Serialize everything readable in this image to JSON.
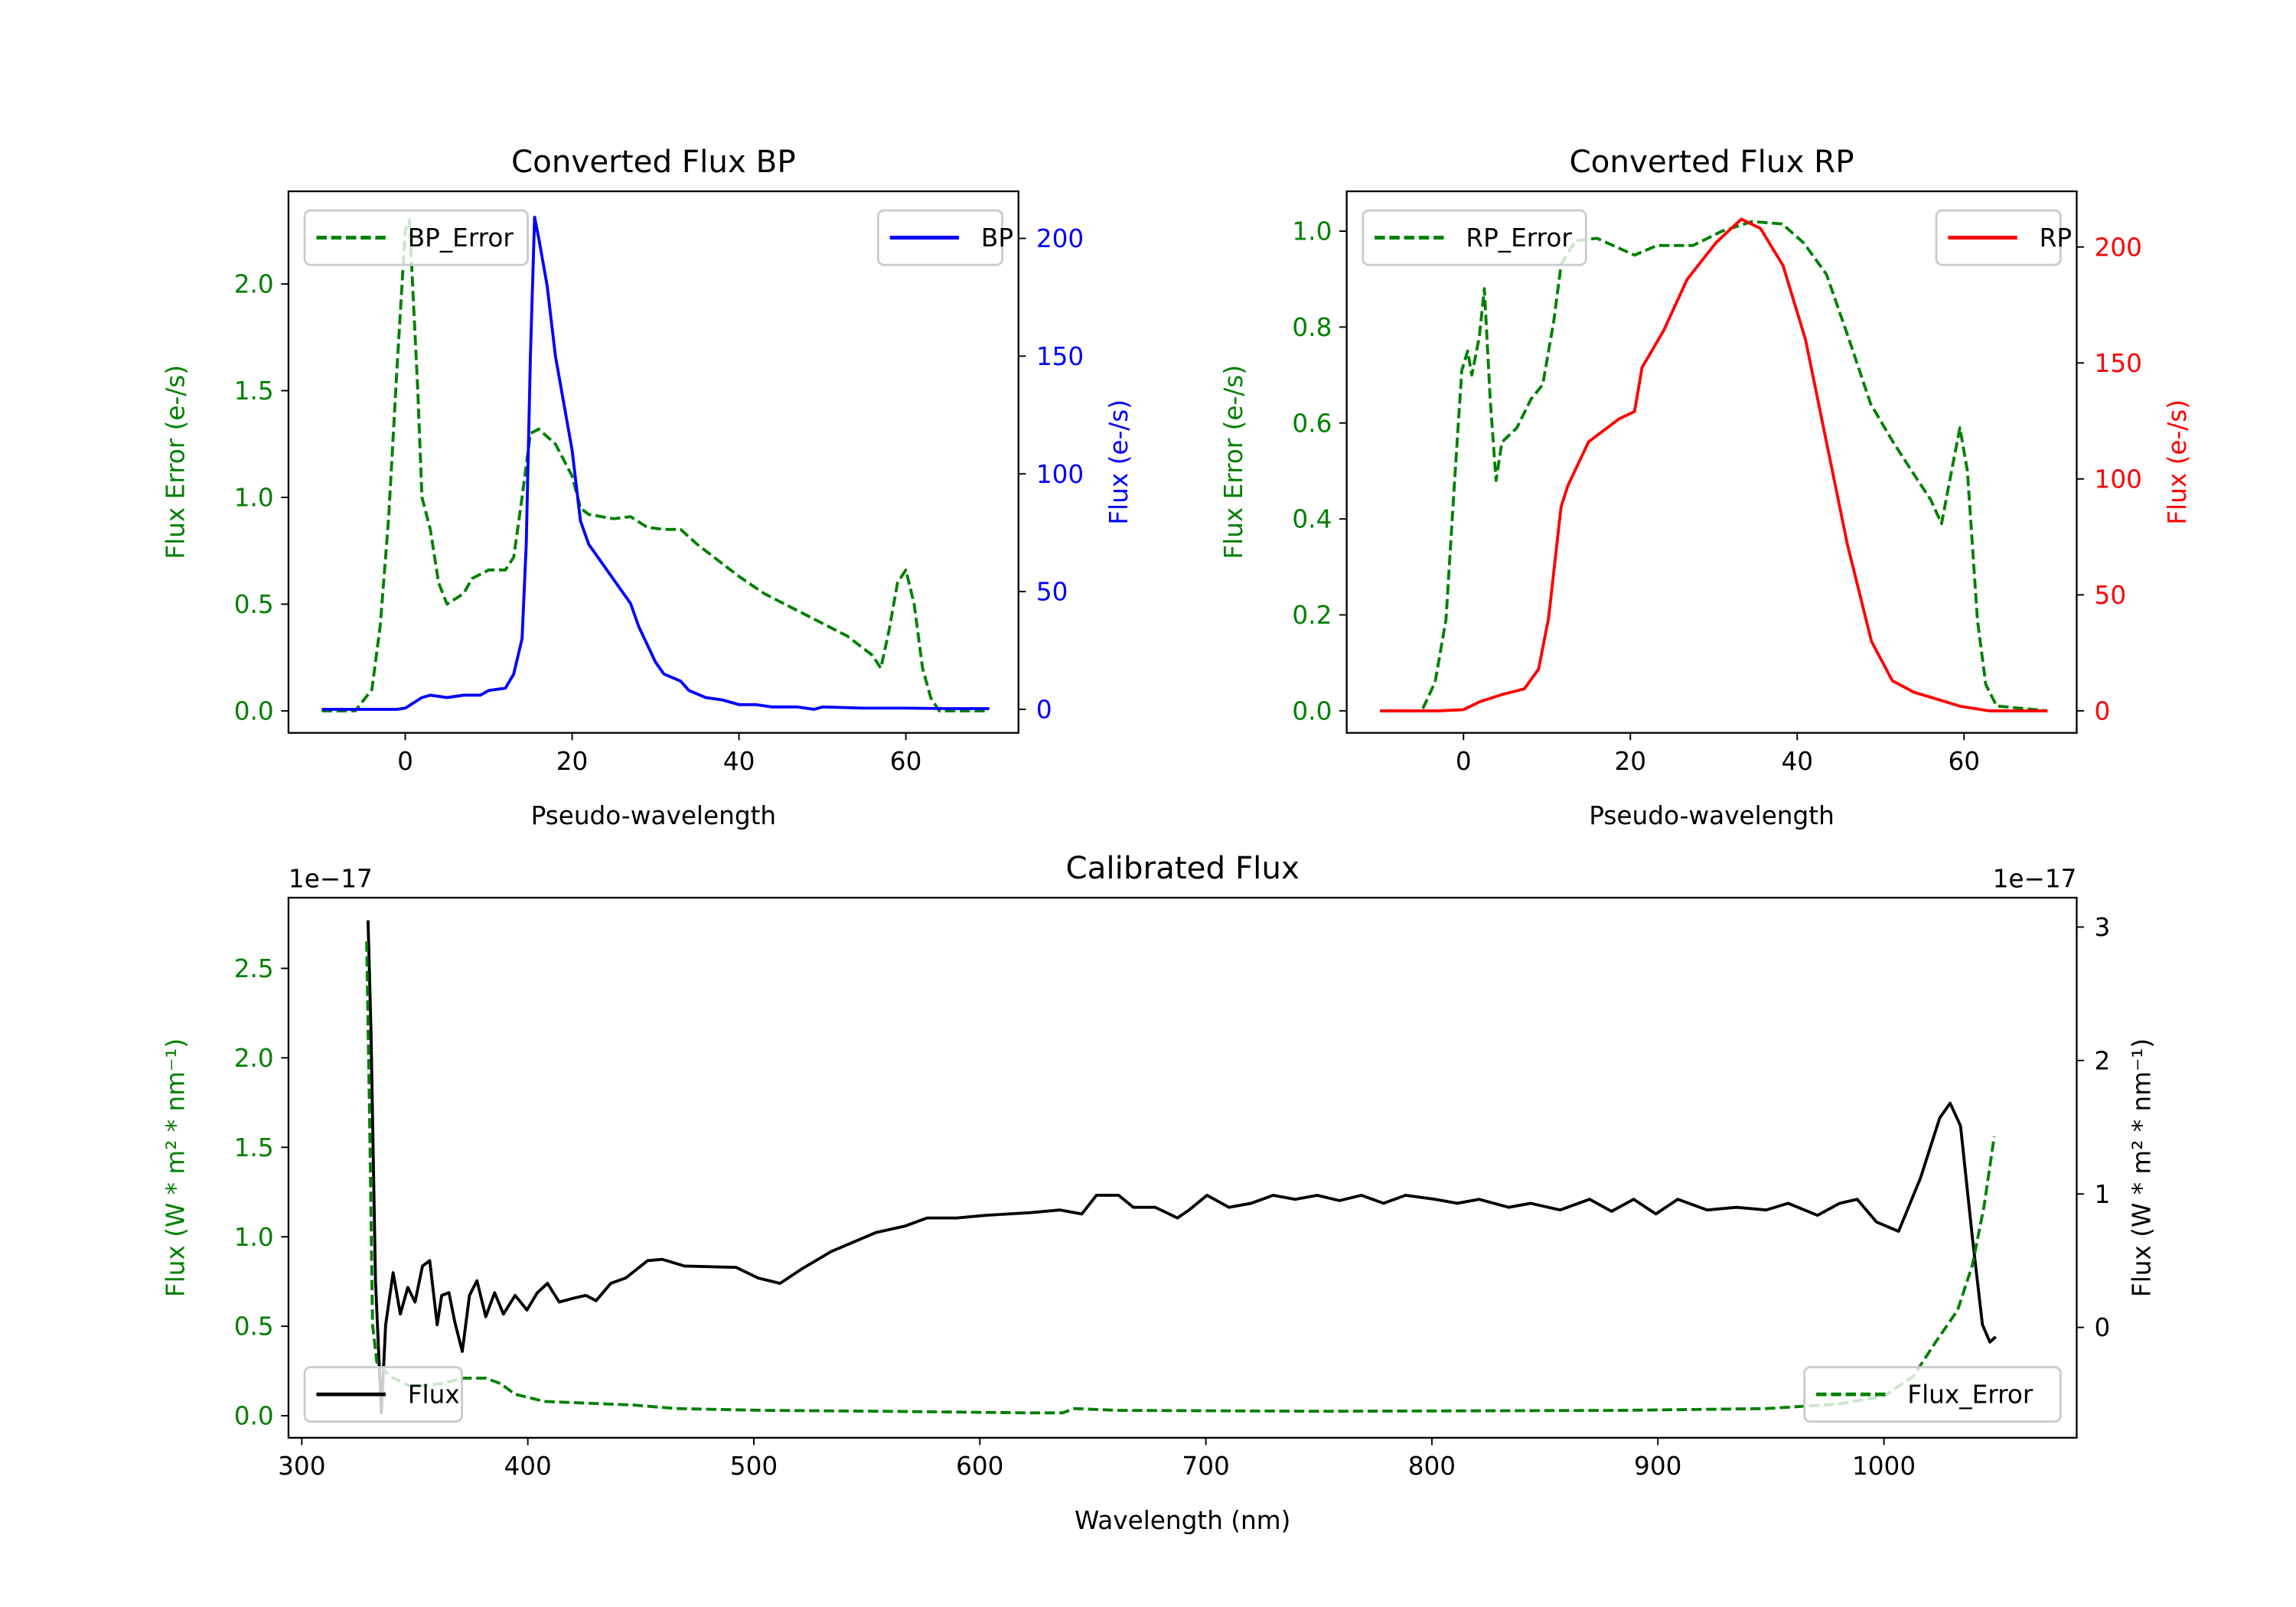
{
  "chart_data": [
    {
      "type": "line",
      "title": "Converted Flux BP",
      "xlabel": "Pseudo-wavelength",
      "ylabel_left": "Flux Error (e-/s)",
      "ylabel_right": "Flux (e-/s)",
      "left_color": "#008000",
      "right_color": "#0000ff",
      "xlim": [
        -14,
        73.5
      ],
      "ylim_left": [
        -0.103,
        2.434
      ],
      "ylim_right": [
        -10,
        220
      ],
      "xticks": [
        0,
        20,
        40,
        60
      ],
      "xtick_labels": [
        "0",
        "20",
        "40",
        "60"
      ],
      "yticks_left": [
        0,
        0.5,
        1.0,
        1.5,
        2.0
      ],
      "ytick_labels_left": [
        "0.0",
        "0.5",
        "1.0",
        "1.5",
        "2.0"
      ],
      "yticks_right": [
        0,
        50,
        100,
        150,
        200
      ],
      "ytick_labels_right": [
        "0",
        "50",
        "100",
        "150",
        "200"
      ],
      "offset_left": "",
      "offset_right": "",
      "series": [
        {
          "name": "BP_Error",
          "axis": "left",
          "color": "#008000",
          "style": "dashed",
          "legend": "upper-left",
          "x": [
            -10,
            -6,
            -4,
            -3,
            -2,
            -1,
            0,
            0.5,
            1,
            1.5,
            2,
            3,
            4,
            5,
            7,
            8,
            10,
            12,
            13,
            14,
            15,
            16,
            18,
            20,
            21,
            22,
            25,
            27,
            29,
            31,
            33,
            35,
            37,
            40,
            43,
            47,
            50,
            53,
            56,
            57,
            58,
            59,
            60,
            61,
            62,
            63,
            64,
            70
          ],
          "y": [
            0,
            0,
            0.1,
            0.4,
            0.9,
            1.6,
            2.25,
            2.3,
            1.9,
            1.5,
            1.0,
            0.85,
            0.6,
            0.5,
            0.55,
            0.62,
            0.66,
            0.66,
            0.72,
            1.0,
            1.3,
            1.32,
            1.25,
            1.1,
            0.95,
            0.92,
            0.9,
            0.91,
            0.86,
            0.85,
            0.85,
            0.78,
            0.72,
            0.63,
            0.55,
            0.47,
            0.41,
            0.35,
            0.26,
            0.2,
            0.38,
            0.6,
            0.66,
            0.5,
            0.2,
            0.06,
            0,
            0
          ]
        },
        {
          "name": "BP",
          "axis": "right",
          "color": "#0000ff",
          "style": "solid",
          "legend": "upper-right",
          "x": [
            -10,
            -5,
            -1,
            0,
            2,
            3,
            5,
            7,
            9,
            10,
            12,
            13,
            14,
            14.5,
            15,
            15.5,
            16,
            17,
            18,
            20,
            21,
            22,
            23,
            25,
            27,
            28,
            30,
            31,
            33,
            34,
            36,
            38,
            40,
            42,
            44,
            47,
            49,
            50,
            55,
            60,
            65,
            70
          ],
          "y": [
            0,
            0,
            0,
            0.5,
            5,
            6,
            5,
            6,
            6,
            8,
            9,
            15,
            30,
            70,
            150,
            209,
            200,
            180,
            150,
            110,
            80,
            70,
            65,
            55,
            45,
            35,
            20,
            15,
            12,
            8,
            5,
            4,
            2,
            2,
            1,
            1,
            0,
            1,
            0.5,
            0.5,
            0.3,
            0.3
          ]
        }
      ]
    },
    {
      "type": "line",
      "title": "Converted Flux RP",
      "xlabel": "Pseudo-wavelength",
      "ylabel_left": "Flux Error (e-/s)",
      "ylabel_right": "Flux (e-/s)",
      "left_color": "#008000",
      "right_color": "#ff0000",
      "xlim": [
        -14,
        73.5
      ],
      "ylim_left": [
        -0.046,
        1.083
      ],
      "ylim_right": [
        -9.5,
        224
      ],
      "xticks": [
        0,
        20,
        40,
        60
      ],
      "xtick_labels": [
        "0",
        "20",
        "40",
        "60"
      ],
      "yticks_left": [
        0,
        0.2,
        0.4,
        0.6,
        0.8,
        1.0
      ],
      "ytick_labels_left": [
        "0.0",
        "0.2",
        "0.4",
        "0.6",
        "0.8",
        "1.0"
      ],
      "yticks_right": [
        0,
        50,
        100,
        150,
        200
      ],
      "ytick_labels_right": [
        "0",
        "50",
        "100",
        "150",
        "200"
      ],
      "offset_left": "",
      "offset_right": "",
      "series": [
        {
          "name": "RP_Error",
          "axis": "left",
          "color": "#008000",
          "style": "dashed",
          "legend": "upper-left",
          "x": [
            -10,
            -5,
            -3.4,
            -2.1,
            -1.1,
            -0.2,
            0.5,
            1,
            1.9,
            2.5,
            3.2,
            3.9,
            4.6,
            6.4,
            8.1,
            9.5,
            10.8,
            11.7,
            13.4,
            16,
            20.5,
            23.2,
            27.5,
            31,
            34.6,
            38.2,
            40.8,
            43.5,
            46.1,
            48.8,
            51.5,
            54.1,
            56,
            57.3,
            58.5,
            59.5,
            60.4,
            61.6,
            62.6,
            63.9,
            70
          ],
          "y": [
            0,
            0,
            0.06,
            0.19,
            0.47,
            0.71,
            0.75,
            0.7,
            0.78,
            0.88,
            0.65,
            0.48,
            0.56,
            0.59,
            0.65,
            0.68,
            0.81,
            0.93,
            0.98,
            0.985,
            0.95,
            0.97,
            0.97,
            1.0,
            1.02,
            1.015,
            0.975,
            0.91,
            0.78,
            0.64,
            0.56,
            0.49,
            0.44,
            0.39,
            0.5,
            0.59,
            0.5,
            0.19,
            0.055,
            0.01,
            0
          ]
        },
        {
          "name": "RP",
          "axis": "right",
          "color": "#ff0000",
          "style": "solid",
          "legend": "upper-right",
          "x": [
            -10,
            -3,
            0,
            2,
            4.6,
            7.3,
            9,
            10.2,
            11.7,
            12.5,
            15,
            18.7,
            20.5,
            21.4,
            24,
            26.8,
            30.3,
            33.3,
            35.6,
            38.3,
            41,
            43.5,
            46,
            48.9,
            51.4,
            54,
            56.8,
            59.5,
            63,
            70
          ],
          "y": [
            0,
            0,
            0.5,
            4,
            7,
            9.5,
            18,
            40,
            88,
            97,
            116,
            126,
            129,
            148,
            164,
            186,
            202,
            212,
            208,
            192,
            160,
            116,
            72,
            30,
            13,
            8,
            5,
            2,
            0,
            0
          ]
        }
      ]
    },
    {
      "type": "line",
      "title": "Calibrated Flux",
      "xlabel": "Wavelength (nm)",
      "ylabel_left": "Flux (W * m² * nm⁻¹)",
      "ylabel_right": "Flux (W * m² * nm⁻¹)",
      "left_color": "#008000",
      "right_color": "#000000",
      "xlim": [
        294.1,
        1085.3
      ],
      "ylim_left": [
        -0.123,
        2.895
      ],
      "ylim_right": [
        -0.827,
        3.22
      ],
      "xticks": [
        300,
        400,
        500,
        600,
        700,
        800,
        900,
        1000
      ],
      "xtick_labels": [
        "300",
        "400",
        "500",
        "600",
        "700",
        "800",
        "900",
        "1000"
      ],
      "yticks_left": [
        0,
        0.5,
        1.0,
        1.5,
        2.0,
        2.5
      ],
      "ytick_labels_left": [
        "0.0",
        "0.5",
        "1.0",
        "1.5",
        "2.0",
        "2.5"
      ],
      "yticks_right": [
        0,
        1,
        2,
        3
      ],
      "ytick_labels_right": [
        "0",
        "1",
        "2",
        "3"
      ],
      "offset_left": "1e−17",
      "offset_right": "1e−17",
      "series": [
        {
          "name": "Flux",
          "axis": "right",
          "color": "#000000",
          "style": "solid",
          "legend": "lower-left",
          "x": [
            329.3,
            330.6,
            332.6,
            335.2,
            337.1,
            340.4,
            343.6,
            346.9,
            350.1,
            353.4,
            356.6,
            359.9,
            361.9,
            365.1,
            367.7,
            371,
            374.2,
            377.5,
            381.4,
            385.3,
            389.2,
            394.4,
            399.6,
            404.2,
            408.7,
            413.9,
            420.5,
            425.7,
            430.2,
            436.7,
            443.3,
            453,
            459.5,
            469.3,
            492.1,
            501.9,
            511.6,
            521.4,
            534.4,
            553.9,
            567,
            576.7,
            589.8,
            602.8,
            622.3,
            635.3,
            645.1,
            651.6,
            661.4,
            667.9,
            677.6,
            687.4,
            692.6,
            700.5,
            710.2,
            720,
            729.8,
            739.5,
            749.3,
            759.1,
            768.8,
            778.6,
            788.4,
            801.4,
            811.2,
            820.9,
            834,
            843.7,
            856.7,
            869.8,
            879.5,
            889.3,
            899.1,
            908.8,
            921.8,
            934.8,
            947.9,
            957.6,
            970.6,
            980.4,
            988.2,
            996.7,
            1006.5,
            1016.2,
            1024.7,
            1029.3,
            1033.9,
            1039.1,
            1043.6,
            1046.9,
            1049.5
          ],
          "y": [
            3.05,
            2.23,
            0.35,
            -0.64,
            0.02,
            0.41,
            0.1,
            0.3,
            0.19,
            0.46,
            0.5,
            0.02,
            0.24,
            0.26,
            0.04,
            -0.18,
            0.24,
            0.35,
            0.08,
            0.26,
            0.1,
            0.24,
            0.13,
            0.26,
            0.33,
            0.19,
            0.22,
            0.24,
            0.2,
            0.33,
            0.37,
            0.5,
            0.51,
            0.46,
            0.45,
            0.37,
            0.33,
            0.44,
            0.57,
            0.71,
            0.76,
            0.82,
            0.82,
            0.84,
            0.86,
            0.88,
            0.85,
            0.99,
            0.99,
            0.9,
            0.9,
            0.82,
            0.88,
            0.99,
            0.9,
            0.93,
            0.99,
            0.96,
            0.99,
            0.95,
            0.99,
            0.93,
            0.99,
            0.96,
            0.93,
            0.96,
            0.9,
            0.93,
            0.88,
            0.96,
            0.87,
            0.96,
            0.85,
            0.96,
            0.88,
            0.9,
            0.88,
            0.93,
            0.84,
            0.93,
            0.96,
            0.79,
            0.72,
            1.12,
            1.57,
            1.68,
            1.51,
            0.68,
            0.02,
            -0.11,
            -0.07
          ]
        },
        {
          "name": "Flux_Error",
          "axis": "left",
          "color": "#008000",
          "style": "dashed",
          "legend": "lower-right",
          "x": [
            328.7,
            330,
            331.3,
            333.2,
            339,
            348.8,
            361.9,
            371.6,
            381.4,
            387.9,
            394.4,
            407.4,
            427,
            446.5,
            466,
            505.1,
            557.2,
            622.3,
            636.6,
            641.9,
            661.4,
            752.6,
            882.8,
            948,
            980.4,
            1000,
            1013,
            1022.8,
            1032.6,
            1039.1,
            1044.3,
            1048.8
          ],
          "y": [
            2.65,
            1.66,
            0.51,
            0.3,
            0.22,
            0.16,
            0.18,
            0.21,
            0.21,
            0.18,
            0.12,
            0.08,
            0.07,
            0.06,
            0.04,
            0.03,
            0.025,
            0.016,
            0.016,
            0.04,
            0.03,
            0.025,
            0.03,
            0.04,
            0.066,
            0.11,
            0.22,
            0.41,
            0.59,
            0.84,
            1.17,
            1.56
          ]
        }
      ]
    }
  ]
}
